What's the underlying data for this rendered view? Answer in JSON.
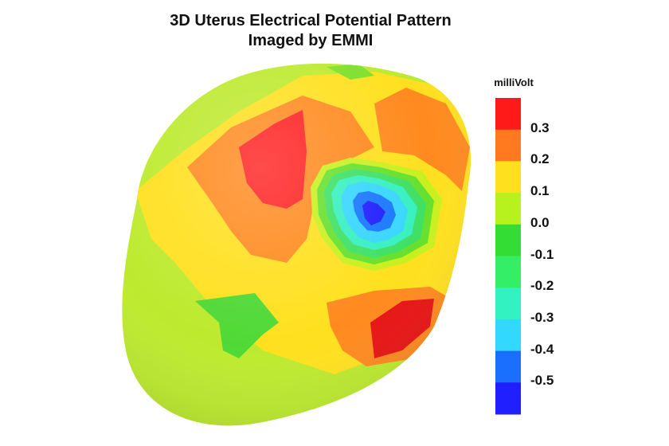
{
  "title_line1": "3D Uterus Electrical Potential Pattern",
  "title_line2": "Imaged by EMMI",
  "colorbar": {
    "title": "milliVolt",
    "labels": [
      "0.3",
      "0.2",
      "0.1",
      "0.0",
      "-0.1",
      "-0.2",
      "-0.3",
      "-0.4",
      "-0.5"
    ],
    "colors": [
      "#ff1a1a",
      "#ff7a1f",
      "#ffe01f",
      "#b7f21f",
      "#33dd33",
      "#33ee66",
      "#33f2c2",
      "#33d8ff",
      "#1a6fff",
      "#1f1fff"
    ]
  }
}
